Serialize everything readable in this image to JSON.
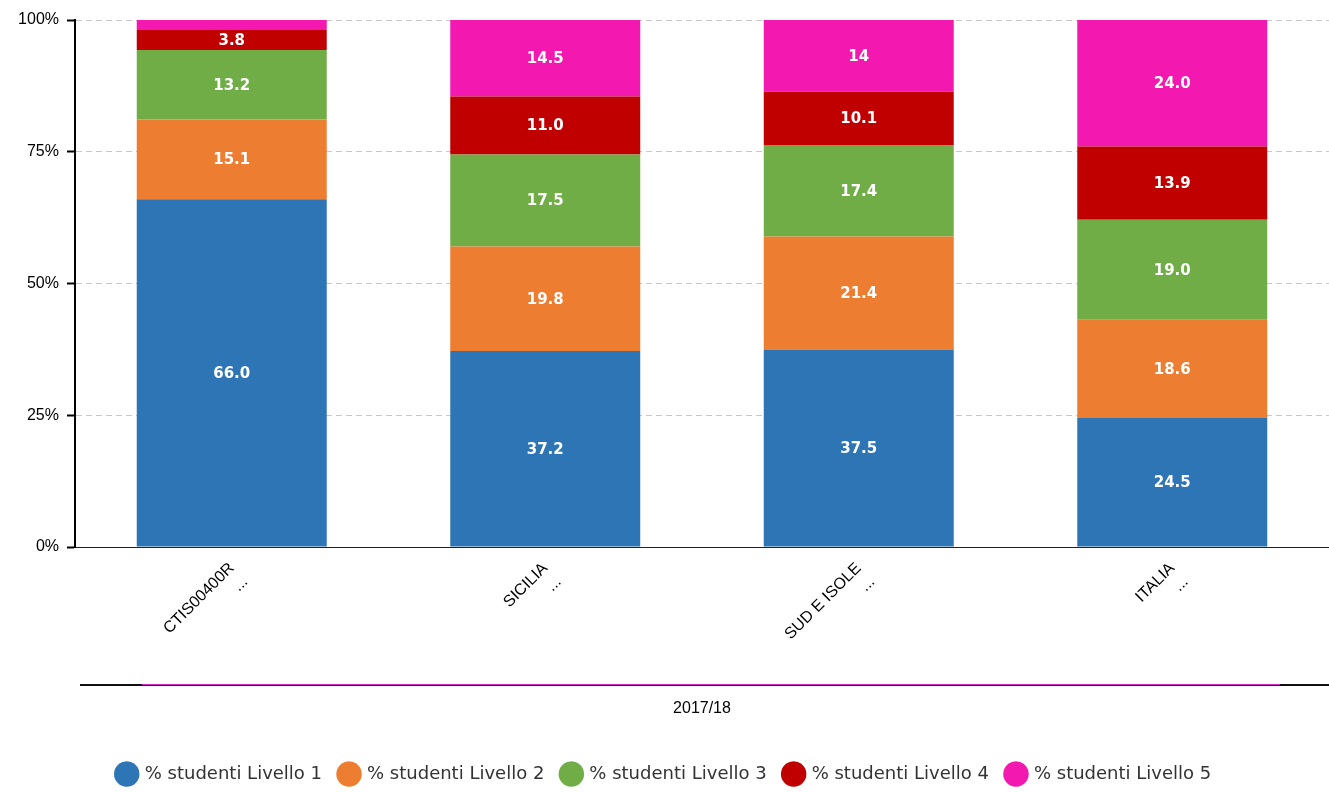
{
  "chart_data": {
    "type": "bar",
    "stacked": true,
    "categories": [
      "CTIS00400R\n...",
      "SICILIA\n...",
      "SUD E ISOLE\n...",
      "ITALIA\n..."
    ],
    "xlabel": "2017/18",
    "ylim": [
      0,
      100
    ],
    "yticks": [
      {
        "value": 0,
        "label": "0%"
      },
      {
        "value": 25,
        "label": "25%"
      },
      {
        "value": 50,
        "label": "50%"
      },
      {
        "value": 75,
        "label": "75%"
      },
      {
        "value": 100,
        "label": "100%"
      }
    ],
    "grid": "y",
    "legend": "bottom",
    "series": [
      {
        "name": "% studenti Livello 1",
        "color": "#2e75b6",
        "values": [
          66.0,
          37.2,
          37.5,
          24.5
        ],
        "value_labels": [
          "66.0",
          "37.2",
          "37.5",
          "24.5"
        ]
      },
      {
        "name": "% studenti Livello 2",
        "color": "#ed7d31",
        "values": [
          15.1,
          19.8,
          21.4,
          18.6
        ],
        "value_labels": [
          "15.1",
          "19.8",
          "21.4",
          "18.6"
        ]
      },
      {
        "name": "% studenti Livello 3",
        "color": "#70ad47",
        "values": [
          13.2,
          17.5,
          17.4,
          19.0
        ],
        "value_labels": [
          "13.2",
          "17.5",
          "17.4",
          "19.0"
        ]
      },
      {
        "name": "% studenti Livello 4",
        "color": "#c00000",
        "values": [
          3.8,
          11.0,
          10.1,
          13.9
        ],
        "value_labels": [
          "3.8",
          "11.0",
          "10.1",
          "13.9"
        ]
      },
      {
        "name": "% studenti Livello 5",
        "color": "#f218b0",
        "values": [
          1.9,
          14.5,
          14,
          24.0
        ],
        "value_labels": [
          null,
          "14.5",
          "14",
          "24.0"
        ]
      }
    ]
  }
}
